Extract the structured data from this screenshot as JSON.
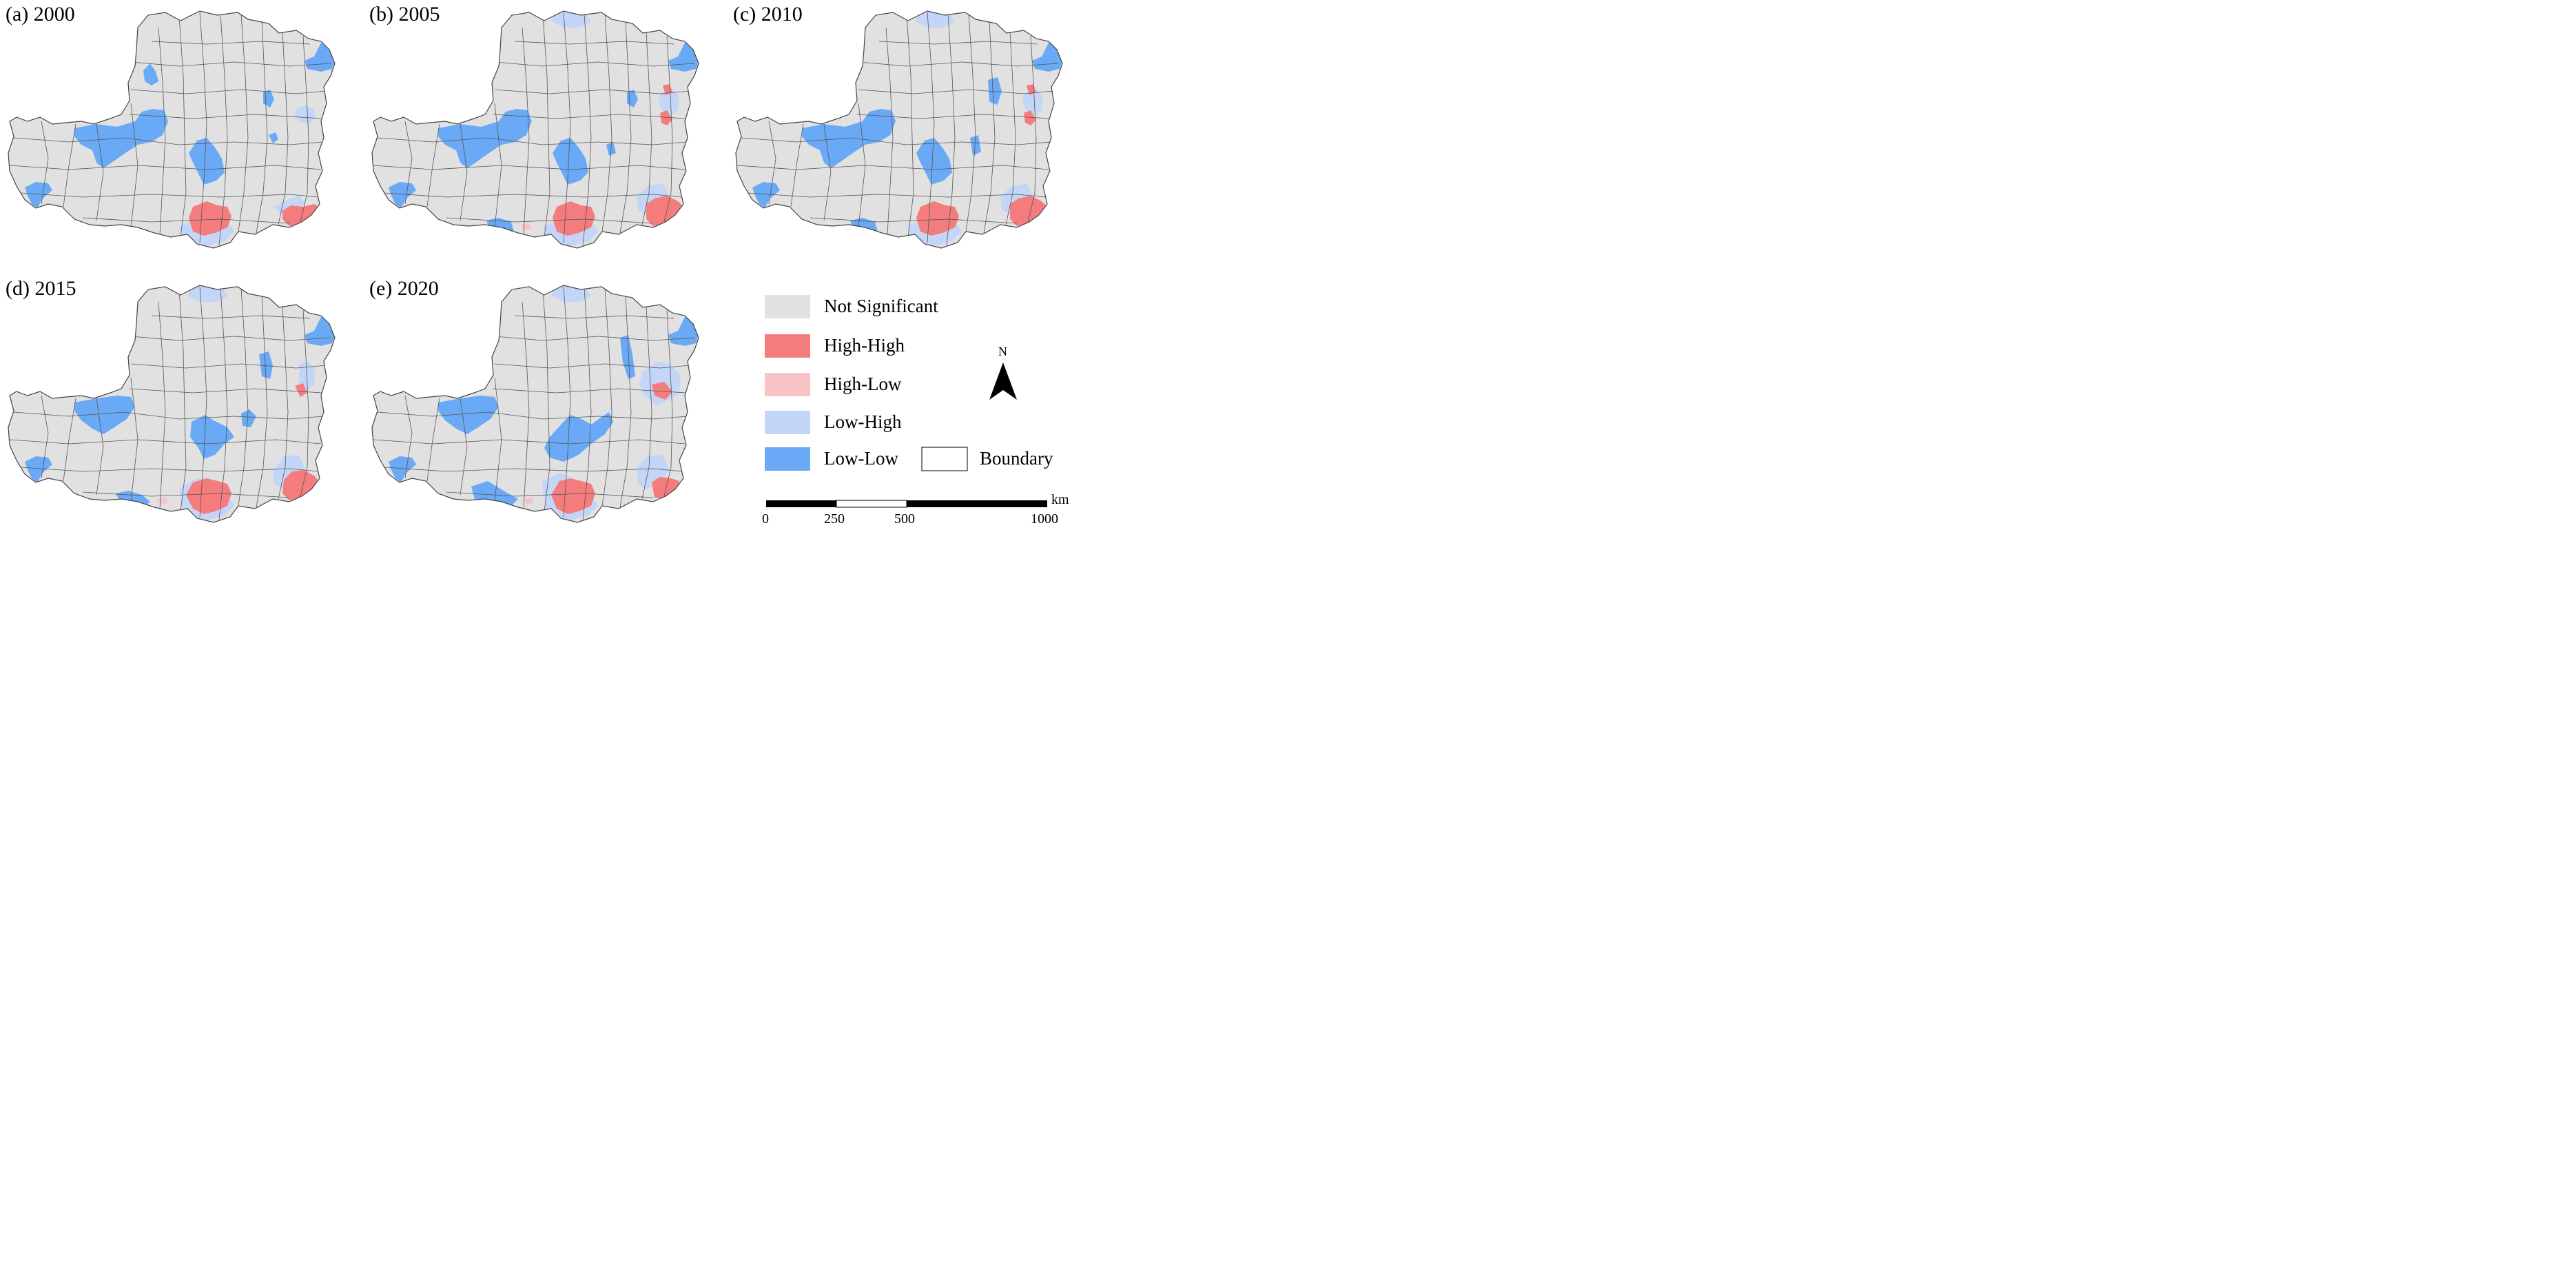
{
  "panels": [
    {
      "id": "a",
      "title": "(a) 2000"
    },
    {
      "id": "b",
      "title": "(b) 2005"
    },
    {
      "id": "c",
      "title": "(c) 2010"
    },
    {
      "id": "d",
      "title": "(d) 2015"
    },
    {
      "id": "e",
      "title": "(e) 2020"
    }
  ],
  "legend": {
    "items": [
      {
        "label": "Not Significant",
        "color": "#e1e1e1"
      },
      {
        "label": "High-High",
        "color": "#f47c7d"
      },
      {
        "label": "High-Low",
        "color": "#f8c3c4"
      },
      {
        "label": "Low-High",
        "color": "#c4d6f8"
      },
      {
        "label": "Low-Low",
        "color": "#6aa9f5"
      }
    ],
    "boundary_label": "Boundary",
    "north_label": "N"
  },
  "scale_bar": {
    "unit": "km",
    "ticks": [
      "0",
      "250",
      "500",
      "1000"
    ]
  },
  "colors": {
    "not_significant": "#e1e1e1",
    "high_high": "#f47c7d",
    "high_low": "#f8c3c4",
    "low_high": "#c4d6f8",
    "low_low": "#6aa9f5",
    "boundary_line": "#555555"
  }
}
